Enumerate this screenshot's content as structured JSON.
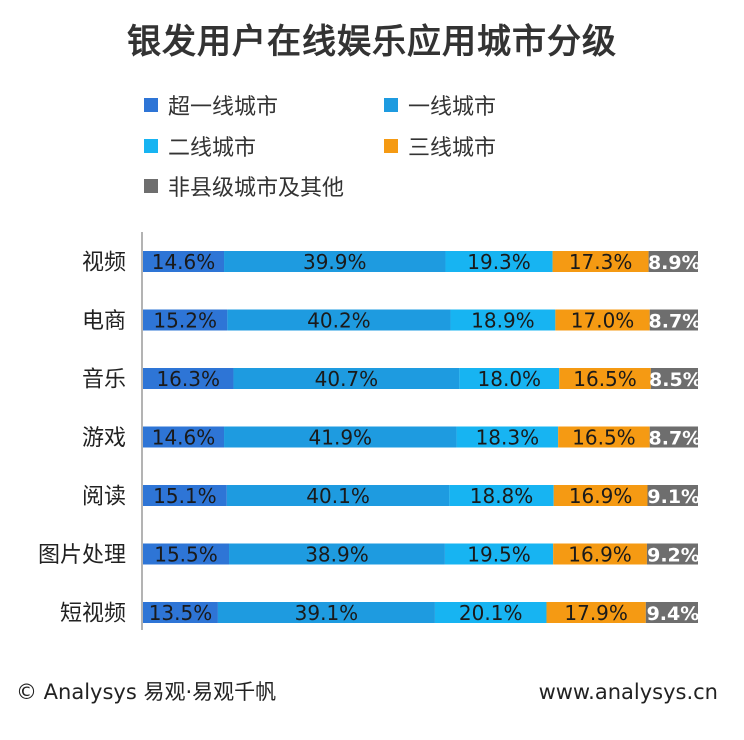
{
  "chart_data": {
    "type": "bar",
    "stacked": true,
    "orientation": "horizontal",
    "percent_stacked": true,
    "title": "银发用户在线娱乐应用城市分级",
    "categories": [
      "视频",
      "电商",
      "音乐",
      "游戏",
      "阅读",
      "图片处理",
      "短视频"
    ],
    "series": [
      {
        "name": "超一线城市",
        "color": "#2E75D6",
        "values": [
          14.6,
          15.2,
          16.3,
          14.6,
          15.1,
          15.5,
          13.5
        ]
      },
      {
        "name": "一线城市",
        "color": "#1E9BE0",
        "values": [
          39.9,
          40.2,
          40.7,
          41.9,
          40.1,
          38.9,
          39.1
        ]
      },
      {
        "name": "二线城市",
        "color": "#17B4F2",
        "values": [
          19.3,
          18.9,
          18.0,
          18.3,
          18.8,
          19.5,
          20.1
        ]
      },
      {
        "name": "三线城市",
        "color": "#F59A13",
        "values": [
          17.3,
          17.0,
          16.5,
          16.5,
          16.9,
          16.9,
          17.9
        ]
      },
      {
        "name": "非县级城市及其他",
        "color": "#6E6E6E",
        "values": [
          8.9,
          8.7,
          8.5,
          8.7,
          9.1,
          9.2,
          9.4
        ]
      }
    ],
    "value_suffix": "%",
    "legend_position": "top",
    "grid": false
  },
  "footer": {
    "left": "© Analysys 易观·易观千帆",
    "right": "www.analysys.cn"
  }
}
